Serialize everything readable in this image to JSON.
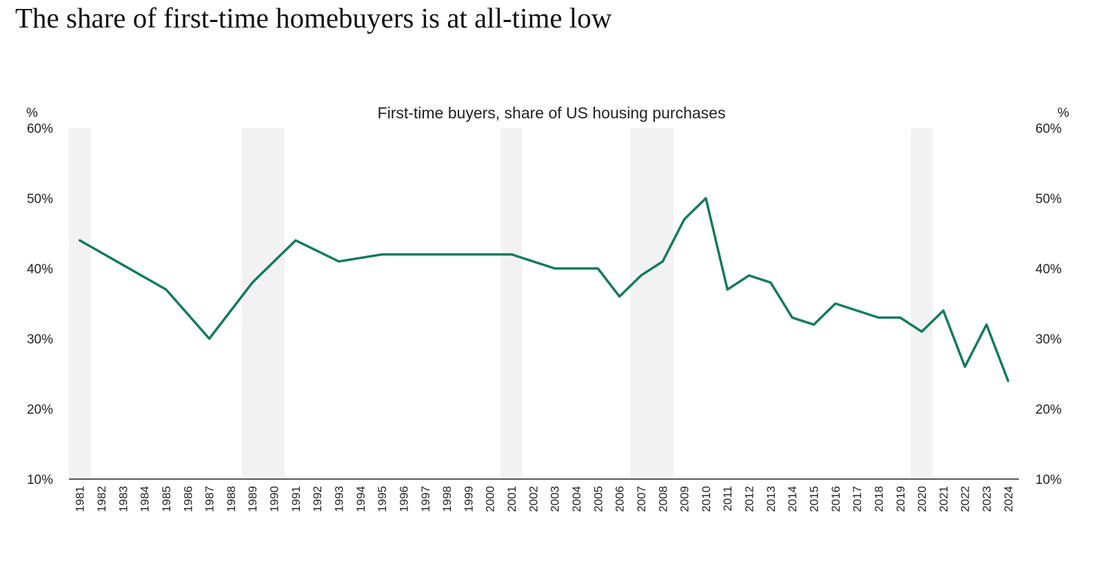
{
  "headline": "The share of  first-time homebuyers is at all-time low",
  "chart_data": {
    "type": "line",
    "title": "First-time buyers, share of US housing purchases",
    "left_axis_unit": "%",
    "right_axis_unit": "%",
    "ylim": [
      10,
      60
    ],
    "yticks": [
      10,
      20,
      30,
      40,
      50,
      60
    ],
    "ytick_labels": [
      "10%",
      "20%",
      "30%",
      "40%",
      "50%",
      "60%"
    ],
    "grid": false,
    "x": [
      "1981",
      "1982",
      "1983",
      "1984",
      "1985",
      "1986",
      "1987",
      "1988",
      "1989",
      "1990",
      "1991",
      "1992",
      "1993",
      "1994",
      "1995",
      "1996",
      "1997",
      "1998",
      "1999",
      "2000",
      "2001",
      "2002",
      "2003",
      "2004",
      "2005",
      "2006",
      "2007",
      "2008",
      "2009",
      "2010",
      "2011",
      "2012",
      "2013",
      "2014",
      "2015",
      "2016",
      "2017",
      "2018",
      "2019",
      "2020",
      "2021",
      "2022",
      "2023",
      "2024"
    ],
    "series": [
      {
        "color": "#137a5e",
        "points": [
          {
            "x": "1981",
            "y": 44
          },
          {
            "x": "1985",
            "y": 37
          },
          {
            "x": "1987",
            "y": 30
          },
          {
            "x": "1989",
            "y": 38
          },
          {
            "x": "1991",
            "y": 44
          },
          {
            "x": "1993",
            "y": 41
          },
          {
            "x": "1995",
            "y": 42
          },
          {
            "x": "2001",
            "y": 42
          },
          {
            "x": "2003",
            "y": 40
          },
          {
            "x": "2005",
            "y": 40
          },
          {
            "x": "2006",
            "y": 36
          },
          {
            "x": "2007",
            "y": 39
          },
          {
            "x": "2008",
            "y": 41
          },
          {
            "x": "2009",
            "y": 47
          },
          {
            "x": "2010",
            "y": 50
          },
          {
            "x": "2011",
            "y": 37
          },
          {
            "x": "2012",
            "y": 39
          },
          {
            "x": "2013",
            "y": 38
          },
          {
            "x": "2014",
            "y": 33
          },
          {
            "x": "2015",
            "y": 32
          },
          {
            "x": "2016",
            "y": 35
          },
          {
            "x": "2018",
            "y": 33
          },
          {
            "x": "2019",
            "y": 33
          },
          {
            "x": "2020",
            "y": 31
          },
          {
            "x": "2021",
            "y": 34
          },
          {
            "x": "2022",
            "y": 26
          },
          {
            "x": "2023",
            "y": 32
          },
          {
            "x": "2024",
            "y": 24
          }
        ]
      }
    ],
    "shaded_bands": [
      {
        "start": "1981",
        "end": "1981"
      },
      {
        "start": "1989",
        "end": "1990"
      },
      {
        "start": "2001",
        "end": "2001"
      },
      {
        "start": "2007",
        "end": "2008"
      },
      {
        "start": "2020",
        "end": "2020"
      }
    ],
    "band_color": "#f2f2f2",
    "axis_color": "#222222",
    "text_color": "#222222"
  }
}
